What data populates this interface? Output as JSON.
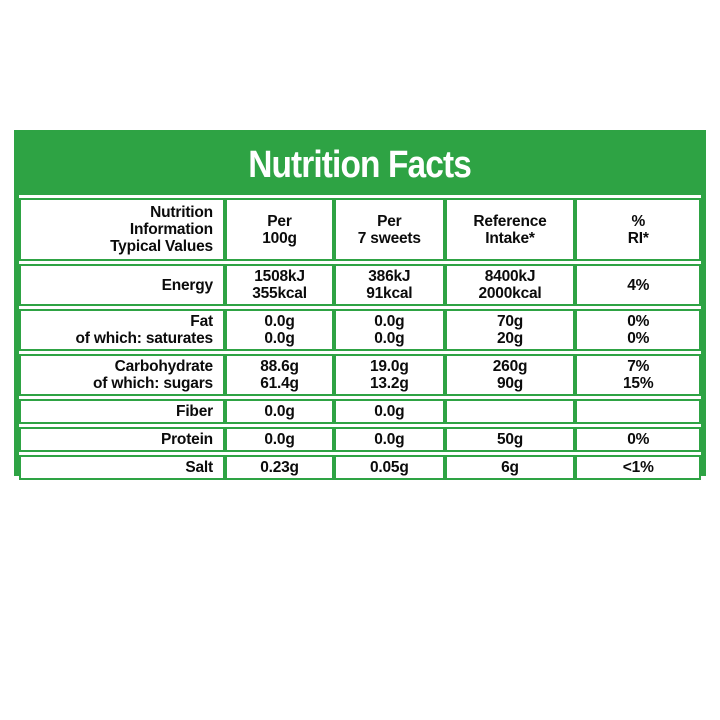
{
  "colors": {
    "green": "#2EA344",
    "text": "#0b0b0b",
    "background": "#ffffff"
  },
  "label": {
    "title": "Nutrition Facts",
    "header": {
      "info_col": [
        "Nutrition",
        "Information",
        "Typical Values"
      ],
      "per_100g": [
        "Per",
        "100g"
      ],
      "per_serving": [
        "Per",
        "7 sweets"
      ],
      "reference_intake": [
        "Reference",
        "Intake*"
      ],
      "percent_ri": [
        "%",
        "RI*"
      ]
    },
    "rows": [
      {
        "name": "energy",
        "cells": [
          [
            "Energy"
          ],
          [
            "1508kJ",
            "355kcal"
          ],
          [
            "386kJ",
            "91kcal"
          ],
          [
            "8400kJ",
            "2000kcal"
          ],
          [
            "4%"
          ]
        ]
      },
      {
        "name": "fat",
        "cells": [
          [
            "Fat",
            "of which: saturates"
          ],
          [
            "0.0g",
            "0.0g"
          ],
          [
            "0.0g",
            "0.0g"
          ],
          [
            "70g",
            "20g"
          ],
          [
            "0%",
            "0%"
          ]
        ]
      },
      {
        "name": "carbohydrate",
        "cells": [
          [
            "Carbohydrate",
            "of which: sugars"
          ],
          [
            "88.6g",
            "61.4g"
          ],
          [
            "19.0g",
            "13.2g"
          ],
          [
            "260g",
            "90g"
          ],
          [
            "7%",
            "15%"
          ]
        ]
      },
      {
        "name": "fiber",
        "cells": [
          [
            "Fiber"
          ],
          [
            "0.0g"
          ],
          [
            "0.0g"
          ],
          [
            ""
          ],
          [
            ""
          ]
        ]
      },
      {
        "name": "protein",
        "cells": [
          [
            "Protein"
          ],
          [
            "0.0g"
          ],
          [
            "0.0g"
          ],
          [
            "50g"
          ],
          [
            "0%"
          ]
        ]
      },
      {
        "name": "salt",
        "cells": [
          [
            "Salt"
          ],
          [
            "0.23g"
          ],
          [
            "0.05g"
          ],
          [
            "6g"
          ],
          [
            "<1%"
          ]
        ]
      }
    ]
  }
}
